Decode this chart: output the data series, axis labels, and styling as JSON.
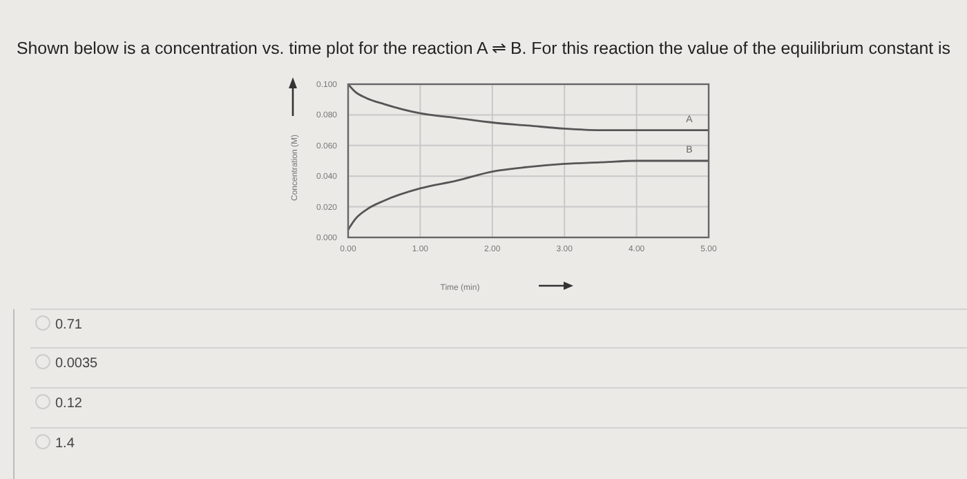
{
  "chart_data": {
    "type": "line",
    "title": "Shown below is a concentration vs. time plot for the reaction A ⇌ B. For this reaction the value of the equilibrium constant is",
    "xlabel": "Time (min)",
    "ylabel": "Concentration (M)",
    "x": [
      0,
      0.1,
      0.25,
      0.5,
      1,
      1.5,
      2,
      2.5,
      3,
      3.5,
      4,
      5
    ],
    "series": [
      {
        "name": "A",
        "color": "#555555",
        "values": [
          0.1,
          0.095,
          0.091,
          0.087,
          0.081,
          0.078,
          0.075,
          0.073,
          0.071,
          0.07,
          0.07,
          0.07
        ]
      },
      {
        "name": "B",
        "color": "#555555",
        "values": [
          0.005,
          0.012,
          0.018,
          0.024,
          0.032,
          0.037,
          0.043,
          0.046,
          0.048,
          0.049,
          0.05,
          0.05
        ]
      }
    ],
    "xlim": [
      0,
      5
    ],
    "xticks": [
      {
        "value": 0,
        "label": "0.00"
      },
      {
        "value": 1,
        "label": "1.00"
      },
      {
        "value": 2,
        "label": "2.00"
      },
      {
        "value": 3,
        "label": "3.00"
      },
      {
        "value": 4,
        "label": "4.00"
      },
      {
        "value": 5,
        "label": "5.00"
      }
    ],
    "ylim": [
      0,
      0.1
    ],
    "yticks": [
      {
        "value": 0,
        "label": "0.000"
      },
      {
        "value": 0.02,
        "label": "0.020"
      },
      {
        "value": 0.04,
        "label": "0.040"
      },
      {
        "value": 0.06,
        "label": "0.060"
      },
      {
        "value": 0.08,
        "label": "0.080"
      },
      {
        "value": 0.1,
        "label": "0.100"
      }
    ],
    "grid": true,
    "marker": "none",
    "line_style": "solid",
    "annotations": [
      "0.71",
      "0.0035",
      "0.12",
      "1.4"
    ]
  }
}
